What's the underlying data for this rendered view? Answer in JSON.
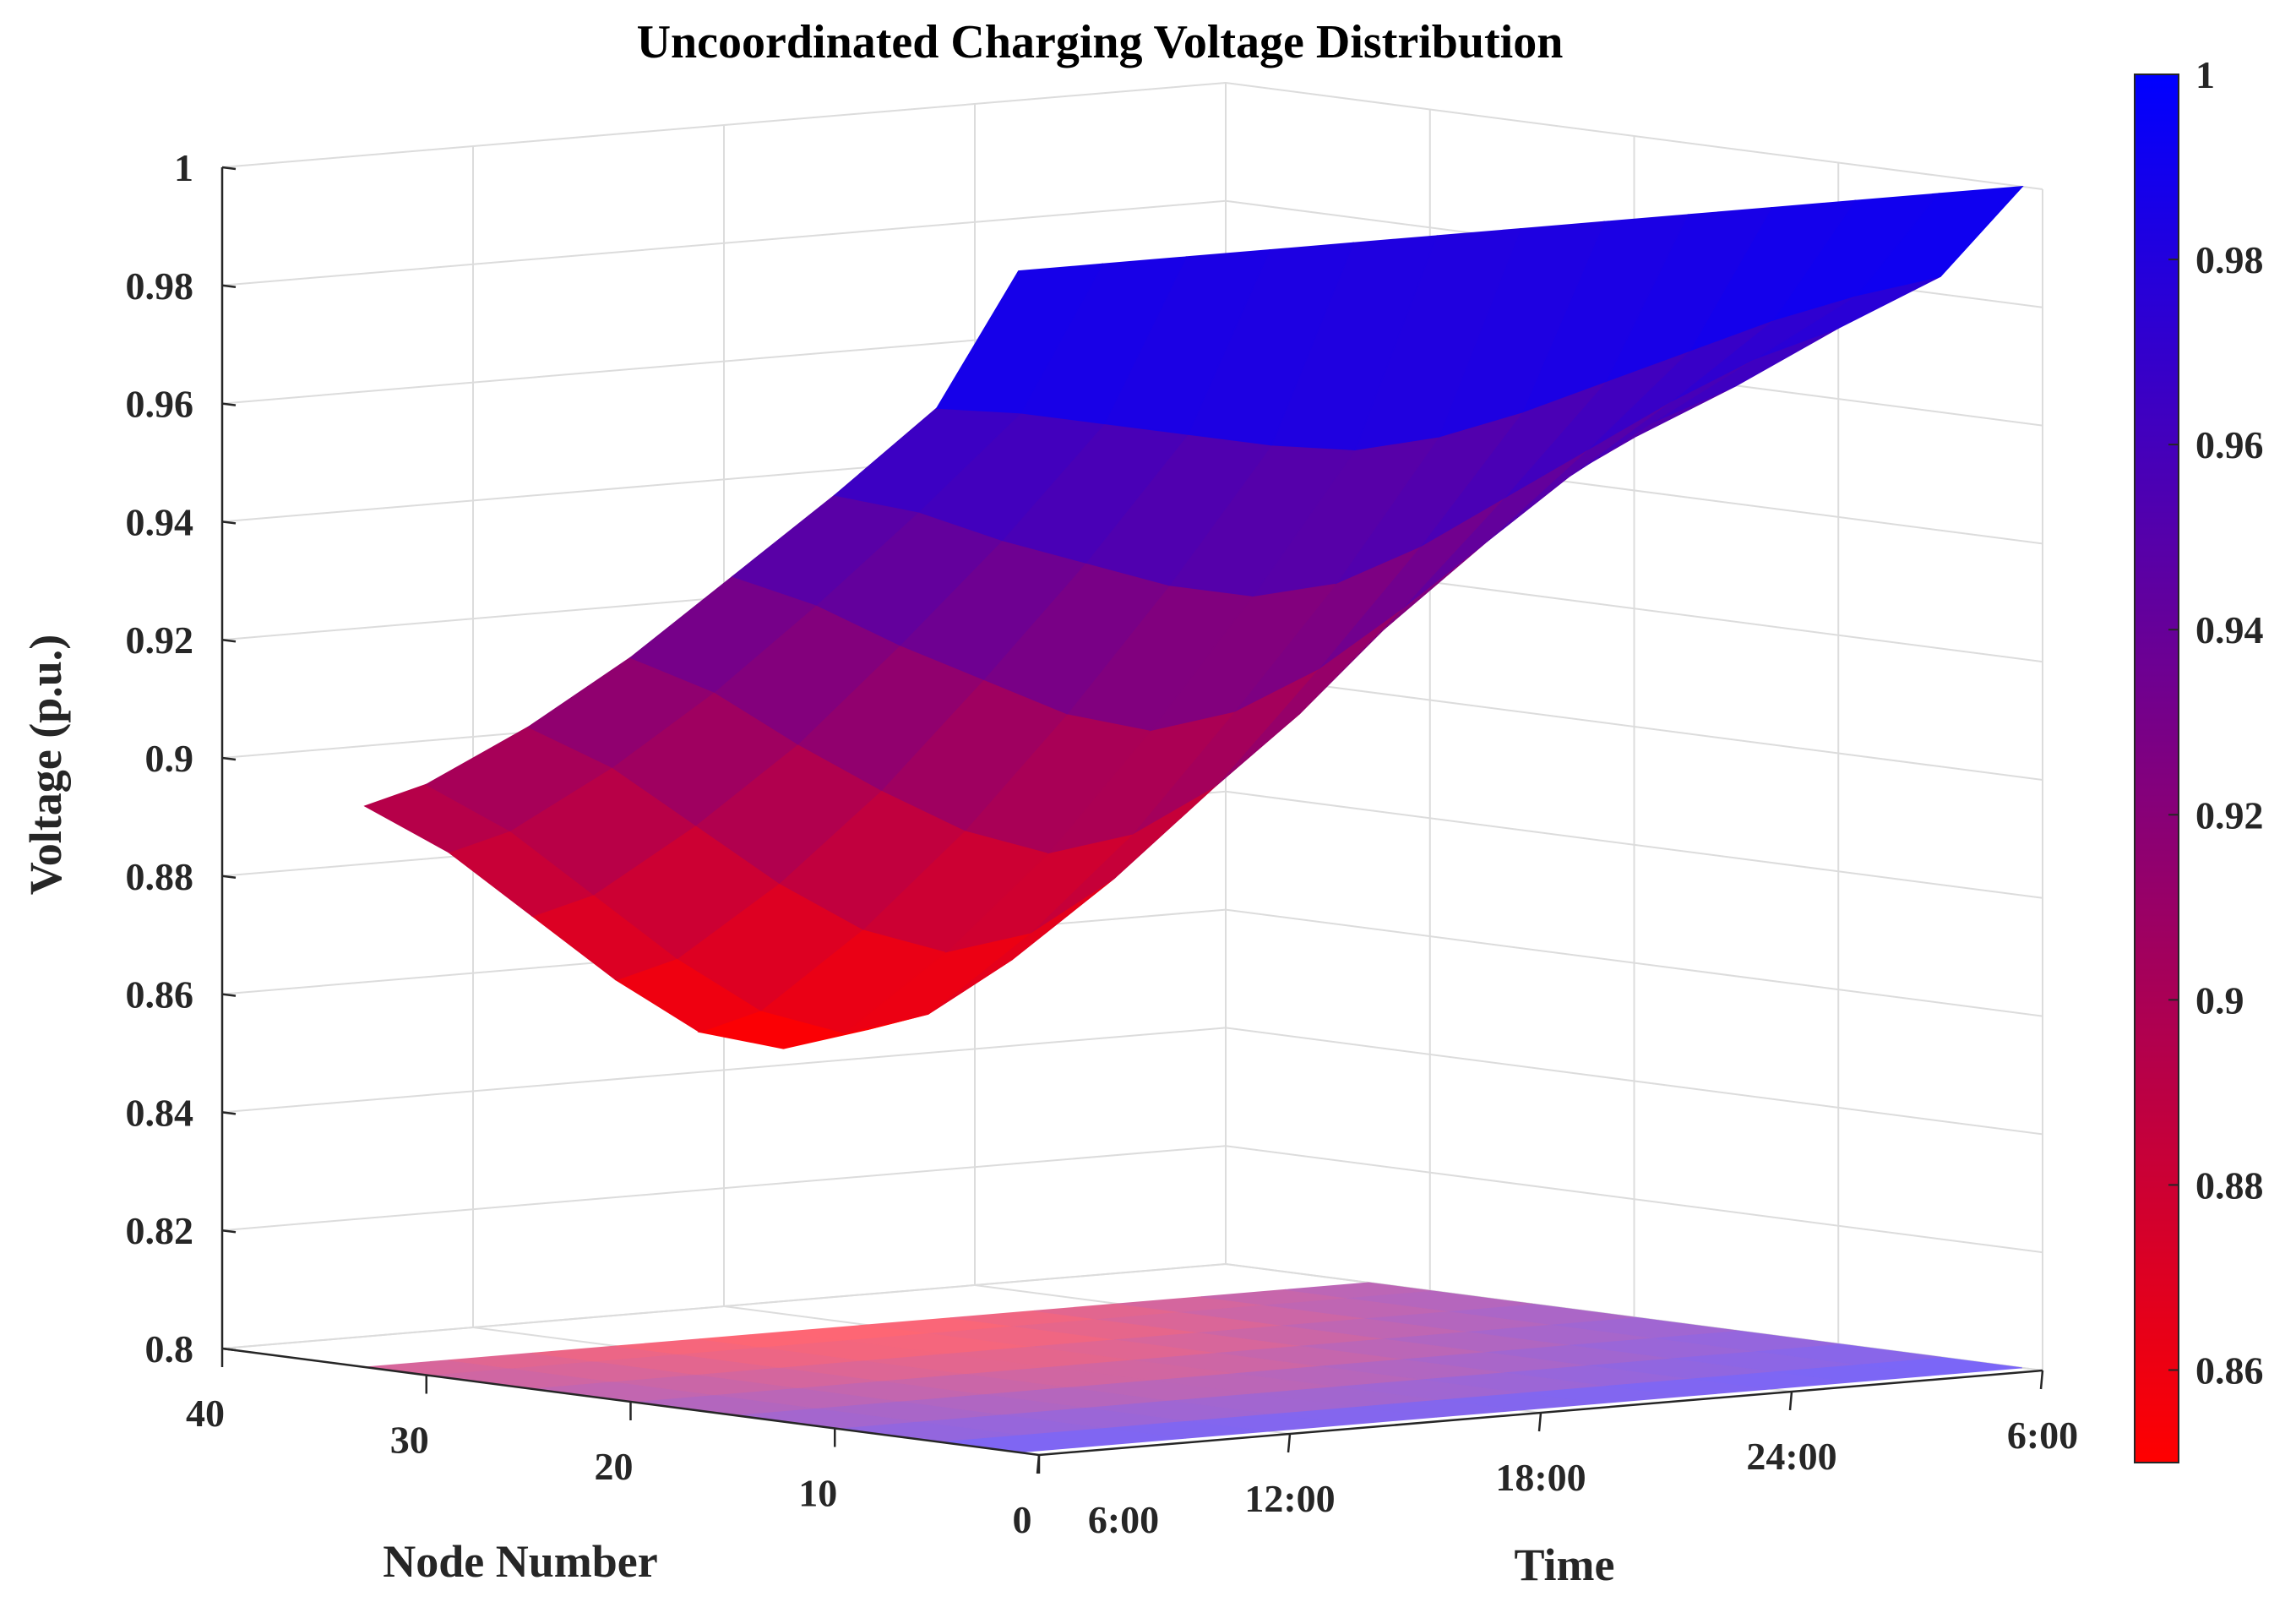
{
  "chart_data": {
    "type": "surface",
    "title": "Uncoordinated Charging Voltage Distribution",
    "xlabel": "Time",
    "ylabel": "Node Number",
    "zlabel": "Voltage (p.u.)",
    "z_range": [
      0.8,
      1.0
    ],
    "z_ticks": [
      "0.8",
      "0.82",
      "0.84",
      "0.86",
      "0.88",
      "0.9",
      "0.92",
      "0.94",
      "0.96",
      "0.98",
      "1"
    ],
    "time_ticks": [
      "6:00",
      "12:00",
      "18:00",
      "24:00",
      "6:00"
    ],
    "node_ticks": [
      "0",
      "10",
      "20",
      "30",
      "40"
    ],
    "node_range": [
      0,
      40
    ],
    "colorbar": {
      "ticks": [
        "0.86",
        "0.88",
        "0.9",
        "0.92",
        "0.94",
        "0.96",
        "0.98",
        "1"
      ],
      "range": [
        0.85,
        1.0
      ],
      "color_low": "#ff0000",
      "color_high": "#0000ff"
    },
    "grid": true,
    "nodes": [
      1,
      5,
      10,
      15,
      20,
      25,
      30,
      33
    ],
    "time_hours_from_6": [
      0,
      2,
      4,
      6,
      8,
      10,
      12,
      14,
      16,
      18,
      20,
      22,
      24
    ],
    "voltage": [
      [
        1.0,
        1.0,
        1.0,
        1.0,
        1.0,
        1.0,
        1.0,
        1.0,
        1.0,
        1.0,
        1.0,
        1.0,
        1.0
      ],
      [
        0.975,
        0.973,
        0.97,
        0.967,
        0.964,
        0.962,
        0.963,
        0.966,
        0.97,
        0.974,
        0.978,
        0.981,
        0.983
      ],
      [
        0.958,
        0.954,
        0.948,
        0.943,
        0.938,
        0.935,
        0.936,
        0.941,
        0.948,
        0.955,
        0.962,
        0.968,
        0.972
      ],
      [
        0.942,
        0.936,
        0.928,
        0.921,
        0.914,
        0.91,
        0.912,
        0.918,
        0.927,
        0.937,
        0.947,
        0.955,
        0.96
      ],
      [
        0.926,
        0.919,
        0.909,
        0.9,
        0.892,
        0.887,
        0.889,
        0.896,
        0.907,
        0.92,
        0.932,
        0.942,
        0.949
      ],
      [
        0.912,
        0.904,
        0.893,
        0.882,
        0.873,
        0.868,
        0.87,
        0.878,
        0.89,
        0.904,
        0.918,
        0.93,
        0.938
      ],
      [
        0.9,
        0.891,
        0.879,
        0.867,
        0.857,
        0.852,
        0.854,
        0.862,
        0.875,
        0.891,
        0.906,
        0.919,
        0.929
      ],
      [
        0.895,
        0.886,
        0.874,
        0.862,
        0.852,
        0.848,
        0.85,
        0.857,
        0.87,
        0.886,
        0.901,
        0.914,
        0.925
      ]
    ]
  }
}
